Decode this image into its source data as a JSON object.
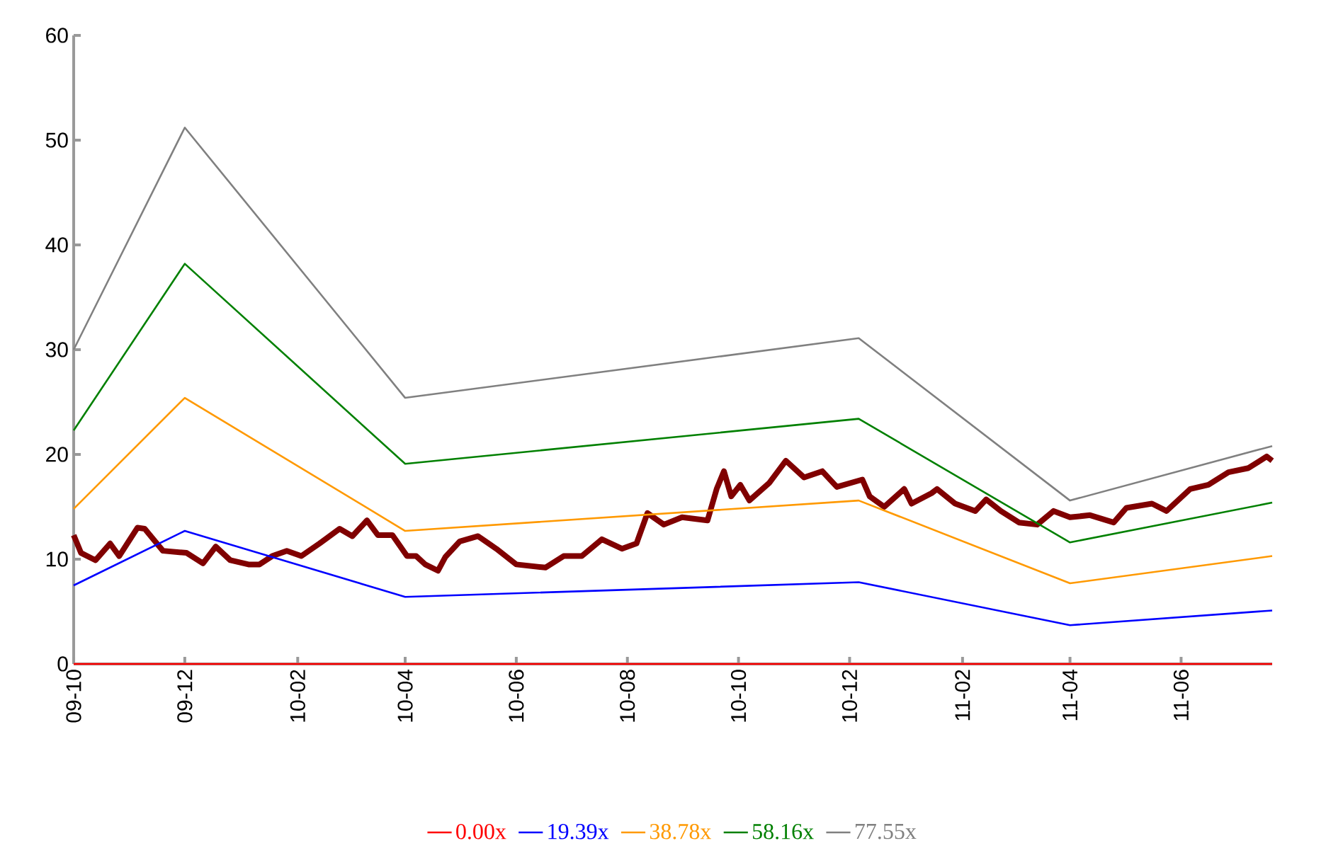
{
  "chart_data": {
    "type": "line",
    "xlim": [
      "2009-10-01",
      "2011-07-21"
    ],
    "ylim": [
      0,
      60
    ],
    "yticks": [
      0,
      10,
      20,
      30,
      40,
      50,
      60
    ],
    "xticks": [
      {
        "value": "2009-10-01",
        "label": "09-10"
      },
      {
        "value": "2009-12-01",
        "label": "09-12"
      },
      {
        "value": "2010-02-01",
        "label": "10-02"
      },
      {
        "value": "2010-04-01",
        "label": "10-04"
      },
      {
        "value": "2010-06-01",
        "label": "10-06"
      },
      {
        "value": "2010-08-01",
        "label": "10-08"
      },
      {
        "value": "2010-10-01",
        "label": "10-10"
      },
      {
        "value": "2010-12-01",
        "label": "10-12"
      },
      {
        "value": "2011-02-01",
        "label": "11-02"
      },
      {
        "value": "2011-04-01",
        "label": "11-04"
      },
      {
        "value": "2011-06-01",
        "label": "11-06"
      }
    ],
    "grid": false,
    "legend": "bottom",
    "marker": "none",
    "line_style": "solid",
    "series": [
      {
        "color": "#800000",
        "x": [
          "2009-10-01",
          "2009-10-05",
          "2009-10-13",
          "2009-10-21",
          "2009-10-26",
          "2009-11-05",
          "2009-11-09",
          "2009-11-19",
          "2009-12-02",
          "2009-12-11",
          "2009-12-18",
          "2009-12-26",
          "2010-01-05",
          "2010-01-11",
          "2010-01-18",
          "2010-01-26",
          "2010-02-03",
          "2010-02-13",
          "2010-02-24",
          "2010-03-03",
          "2010-03-11",
          "2010-03-17",
          "2010-03-25",
          "2010-04-02",
          "2010-04-07",
          "2010-04-12",
          "2010-04-19",
          "2010-04-23",
          "2010-05-01",
          "2010-05-11",
          "2010-05-21",
          "2010-06-01",
          "2010-06-17",
          "2010-06-27",
          "2010-07-07",
          "2010-07-18",
          "2010-07-29",
          "2010-08-06",
          "2010-08-12",
          "2010-08-21",
          "2010-08-31",
          "2010-09-14",
          "2010-09-19",
          "2010-09-23",
          "2010-09-27",
          "2010-10-02",
          "2010-10-07",
          "2010-10-18",
          "2010-10-27",
          "2010-11-06",
          "2010-11-16",
          "2010-11-24",
          "2010-12-08",
          "2010-12-12",
          "2010-12-20",
          "2010-12-31",
          "2011-01-04",
          "2011-01-15",
          "2011-01-18",
          "2011-01-28",
          "2011-02-08",
          "2011-02-14",
          "2011-02-22",
          "2011-03-04",
          "2011-03-14",
          "2011-03-23",
          "2011-04-01",
          "2011-04-12",
          "2011-04-25",
          "2011-05-02",
          "2011-05-16",
          "2011-05-24",
          "2011-06-06",
          "2011-06-16",
          "2011-06-27",
          "2011-07-08",
          "2011-07-18",
          "2011-07-21"
        ],
        "values": [
          12.3,
          10.6,
          9.9,
          11.5,
          10.3,
          13.0,
          12.9,
          10.8,
          10.6,
          9.6,
          11.2,
          9.9,
          9.5,
          9.5,
          10.3,
          10.8,
          10.3,
          11.5,
          12.9,
          12.2,
          13.7,
          12.3,
          12.3,
          10.3,
          10.3,
          9.5,
          8.9,
          10.2,
          11.7,
          12.2,
          11.0,
          9.5,
          9.2,
          10.3,
          10.3,
          11.9,
          11.0,
          11.5,
          14.4,
          13.3,
          14.0,
          13.7,
          16.7,
          18.4,
          16.0,
          17.1,
          15.6,
          17.3,
          19.4,
          17.8,
          18.4,
          16.9,
          17.6,
          16.0,
          15.0,
          16.7,
          15.3,
          16.3,
          16.7,
          15.3,
          14.6,
          15.7,
          14.6,
          13.5,
          13.3,
          14.6,
          14.0,
          14.2,
          13.5,
          14.9,
          15.3,
          14.6,
          16.7,
          17.1,
          18.3,
          18.7,
          19.8,
          19.4
        ]
      },
      {
        "name": "0.00x",
        "color": "#ff0000",
        "x": [
          "2009-10-01",
          "2009-12-01",
          "2010-04-01",
          "2010-12-06",
          "2011-04-01",
          "2011-07-21"
        ],
        "values": [
          0,
          0,
          0,
          0,
          0,
          0
        ]
      },
      {
        "name": "19.39x",
        "color": "#0000ff",
        "x": [
          "2009-10-01",
          "2009-12-01",
          "2010-04-01",
          "2010-12-06",
          "2011-04-01",
          "2011-07-21"
        ],
        "values": [
          7.5,
          12.7,
          6.4,
          7.8,
          3.7,
          5.1
        ]
      },
      {
        "name": "38.78x",
        "color": "#ff9900",
        "x": [
          "2009-10-01",
          "2009-12-01",
          "2010-04-01",
          "2010-12-06",
          "2011-04-01",
          "2011-07-21"
        ],
        "values": [
          14.8,
          25.4,
          12.7,
          15.6,
          7.7,
          10.3
        ]
      },
      {
        "name": "58.16x",
        "color": "#008000",
        "x": [
          "2009-10-01",
          "2009-12-01",
          "2010-04-01",
          "2010-12-06",
          "2011-04-01",
          "2011-07-21"
        ],
        "values": [
          22.3,
          38.2,
          19.1,
          23.4,
          11.6,
          15.4
        ]
      },
      {
        "name": "77.55x",
        "color": "#808080",
        "x": [
          "2009-10-01",
          "2009-12-01",
          "2010-04-01",
          "2010-12-06",
          "2011-04-01",
          "2011-07-21"
        ],
        "values": [
          30.0,
          51.2,
          25.4,
          31.1,
          15.6,
          20.8
        ]
      }
    ]
  }
}
